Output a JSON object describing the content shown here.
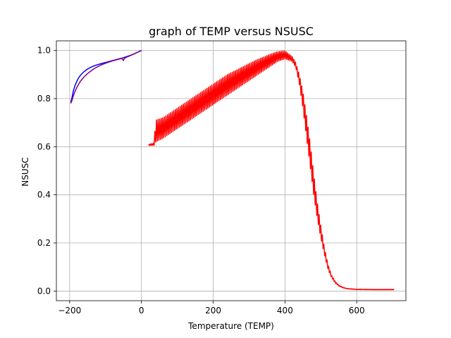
{
  "chart_data": {
    "type": "line",
    "title": "graph of TEMP versus NSUSC",
    "xlabel": "Temperature (TEMP)",
    "ylabel": "NSUSC",
    "xlim": [
      -237,
      737
    ],
    "ylim": [
      -0.04,
      1.04
    ],
    "grid": true,
    "legend": "none",
    "x_ticks": [
      -200,
      0,
      200,
      400,
      600
    ],
    "x_tick_labels": [
      "−200",
      "0",
      "200",
      "400",
      "600"
    ],
    "y_ticks": [
      0.0,
      0.2,
      0.4,
      0.6,
      0.8,
      1.0
    ],
    "y_tick_labels": [
      "0.0",
      "0.2",
      "0.4",
      "0.6",
      "0.8",
      "1.0"
    ],
    "series": [
      {
        "color": "#0000ff",
        "style": "smooth",
        "x": [
          -197,
          -194,
          -190,
          -185,
          -180,
          -175,
          -170,
          -160,
          -150,
          -140,
          -130,
          -120,
          -110,
          -100,
          -90,
          -80,
          -70,
          -60,
          -50,
          -40,
          -30,
          -20,
          -10,
          0
        ],
        "y": [
          0.785,
          0.8,
          0.83,
          0.855,
          0.872,
          0.886,
          0.897,
          0.912,
          0.923,
          0.931,
          0.937,
          0.942,
          0.946,
          0.95,
          0.954,
          0.958,
          0.962,
          0.966,
          0.97,
          0.975,
          0.98,
          0.986,
          0.993,
          1.0
        ]
      },
      {
        "color": "#800080",
        "style": "smooth",
        "x": [
          -197,
          -194,
          -190,
          -185,
          -180,
          -175,
          -170,
          -160,
          -150,
          -140,
          -130,
          -120,
          -110,
          -100,
          -90,
          -80,
          -70,
          -60,
          -55,
          -52,
          -50,
          -48,
          -45,
          -40,
          -30,
          -20,
          -10,
          0
        ],
        "y": [
          0.78,
          0.79,
          0.81,
          0.83,
          0.846,
          0.86,
          0.872,
          0.89,
          0.904,
          0.916,
          0.926,
          0.934,
          0.941,
          0.947,
          0.952,
          0.957,
          0.961,
          0.965,
          0.967,
          0.962,
          0.958,
          0.966,
          0.969,
          0.973,
          0.979,
          0.986,
          0.993,
          1.0
        ]
      },
      {
        "color": "#ff0000",
        "style": "oscillating",
        "x": [
          20,
          35,
          40,
          60,
          80,
          100,
          120,
          140,
          160,
          180,
          200,
          220,
          240,
          260,
          280,
          300,
          320,
          340,
          360,
          380,
          400,
          420,
          430,
          440,
          450,
          460,
          470,
          480,
          490,
          500,
          510,
          520,
          530,
          540,
          550,
          560,
          570,
          580,
          600,
          650,
          705
        ],
        "y": [
          0.605,
          0.61,
          0.67,
          0.69,
          0.705,
          0.72,
          0.735,
          0.75,
          0.765,
          0.78,
          0.795,
          0.81,
          0.825,
          0.84,
          0.855,
          0.87,
          0.885,
          0.9,
          0.92,
          0.945,
          0.96,
          0.945,
          0.92,
          0.87,
          0.78,
          0.67,
          0.55,
          0.42,
          0.32,
          0.24,
          0.16,
          0.1,
          0.06,
          0.035,
          0.022,
          0.015,
          0.011,
          0.009,
          0.007,
          0.006,
          0.006
        ],
        "upper_envelope": [
          0.61,
          0.615,
          0.71,
          0.72,
          0.74,
          0.76,
          0.78,
          0.8,
          0.82,
          0.84,
          0.86,
          0.88,
          0.9,
          0.915,
          0.93,
          0.945,
          0.96,
          0.972,
          0.985,
          0.995,
          0.998,
          0.975,
          0.95,
          0.9,
          0.83,
          0.73,
          0.62,
          0.49,
          0.37,
          0.27,
          0.18,
          0.11,
          0.065,
          0.04,
          0.025,
          0.017,
          0.012,
          0.01,
          0.008,
          0.007,
          0.007
        ],
        "lower_envelope": [
          0.605,
          0.605,
          0.62,
          0.635,
          0.655,
          0.675,
          0.695,
          0.715,
          0.735,
          0.755,
          0.775,
          0.795,
          0.815,
          0.835,
          0.855,
          0.875,
          0.895,
          0.915,
          0.935,
          0.955,
          0.965,
          0.955,
          0.93,
          0.86,
          0.76,
          0.64,
          0.52,
          0.4,
          0.3,
          0.22,
          0.15,
          0.09,
          0.055,
          0.033,
          0.021,
          0.014,
          0.01,
          0.008,
          0.006,
          0.005,
          0.005
        ]
      }
    ]
  }
}
